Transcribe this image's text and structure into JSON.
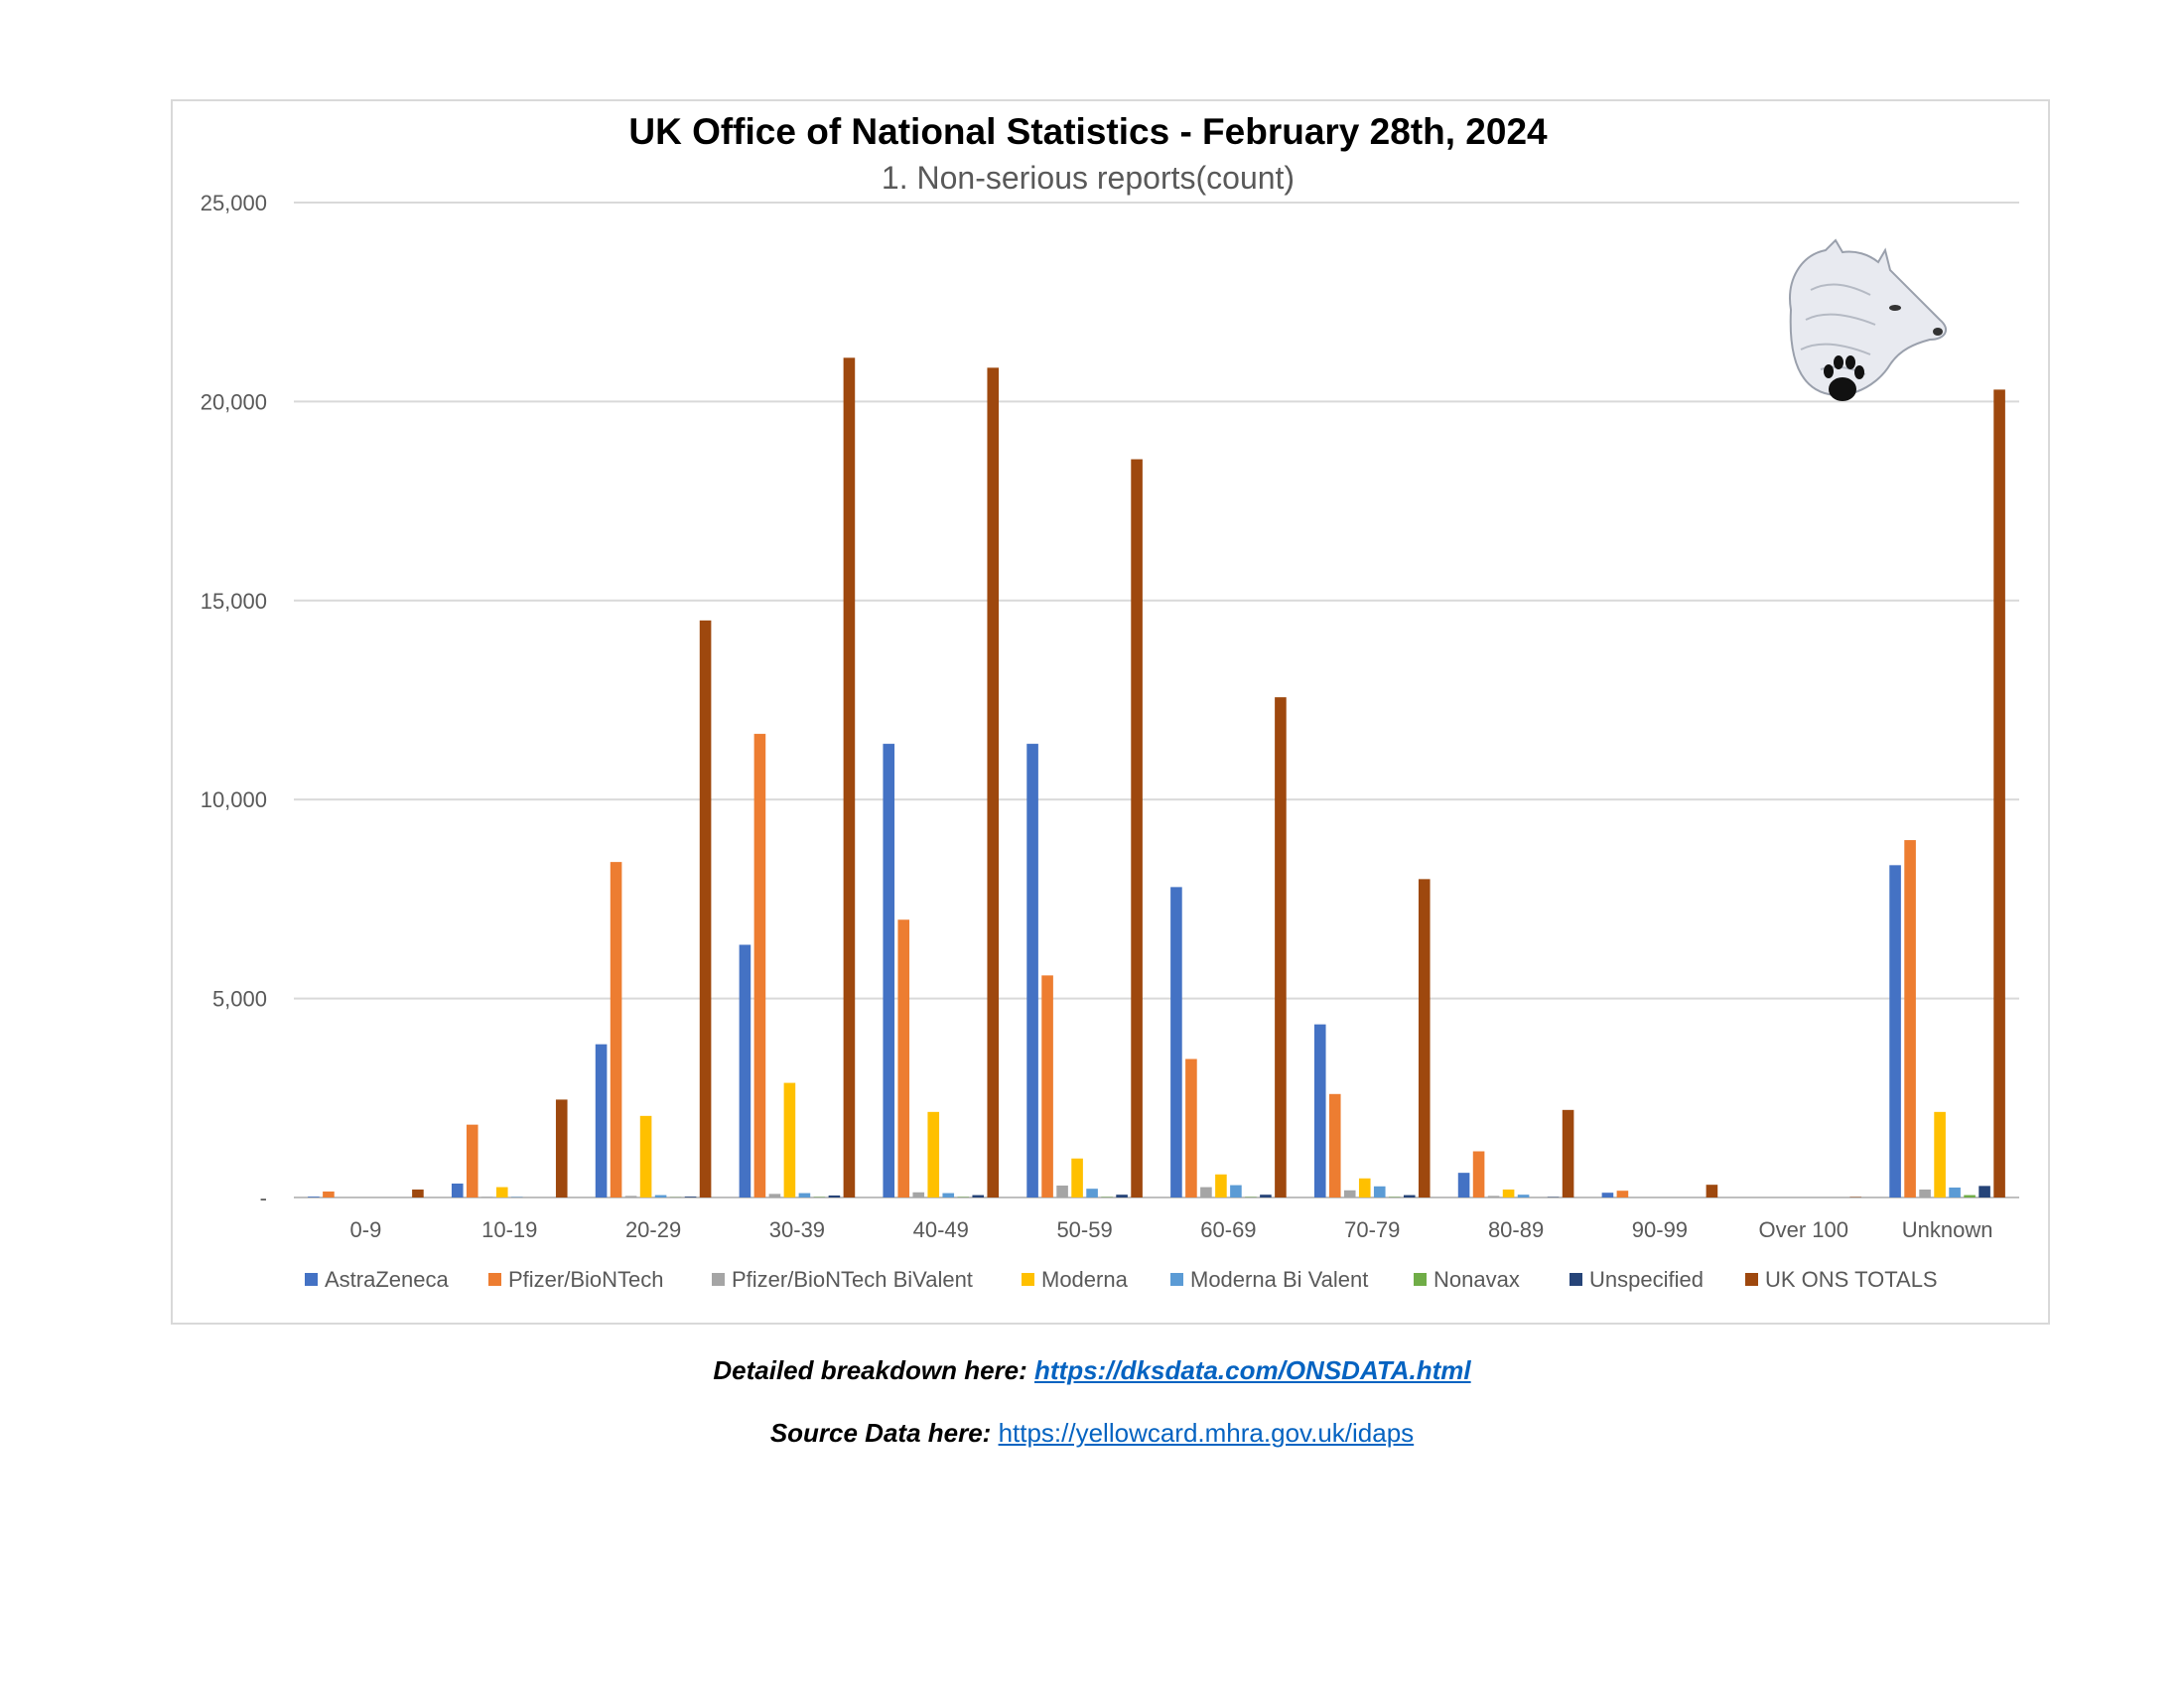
{
  "chart_data": {
    "type": "bar",
    "title": "UK Office of National Statistics - February 28th, 2024",
    "subtitle": "1. Non-serious reports(count)",
    "xlabel": "",
    "ylabel": "",
    "ylim": [
      0,
      25000
    ],
    "yticks": [
      0,
      5000,
      10000,
      15000,
      20000,
      25000
    ],
    "ytick_labels": [
      "-",
      "5,000",
      "10,000",
      "15,000",
      "20,000",
      "25,000"
    ],
    "grid": true,
    "legend_position": "bottom",
    "categories": [
      "0-9",
      "10-19",
      "20-29",
      "30-39",
      "40-49",
      "50-59",
      "60-69",
      "70-79",
      "80-89",
      "90-99",
      "Over 100",
      "Unknown"
    ],
    "series": [
      {
        "name": "AstraZeneca",
        "color": "#4472c4",
        "values": [
          20,
          350,
          3850,
          6350,
          11400,
          11400,
          7800,
          4350,
          620,
          120,
          0,
          8350
        ]
      },
      {
        "name": "Pfizer/BioNTech",
        "color": "#ed7d31",
        "values": [
          150,
          1830,
          8430,
          11650,
          6980,
          5580,
          3480,
          2600,
          1160,
          170,
          0,
          8980
        ]
      },
      {
        "name": "Pfizer/BioNTech BiValent",
        "color": "#a5a5a5",
        "values": [
          0,
          10,
          40,
          90,
          130,
          300,
          260,
          180,
          40,
          0,
          0,
          200
        ]
      },
      {
        "name": "Moderna",
        "color": "#ffc000",
        "values": [
          0,
          260,
          2050,
          2880,
          2150,
          980,
          580,
          480,
          200,
          0,
          0,
          2150
        ]
      },
      {
        "name": "Moderna Bi Valent",
        "color": "#5b9bd5",
        "values": [
          0,
          10,
          60,
          110,
          110,
          220,
          310,
          280,
          70,
          0,
          0,
          250
        ]
      },
      {
        "name": "Nonavax",
        "color": "#70ad47",
        "values": [
          0,
          0,
          5,
          10,
          10,
          10,
          10,
          10,
          0,
          0,
          0,
          60
        ]
      },
      {
        "name": "Unspecified",
        "color": "#264478",
        "values": [
          0,
          0,
          20,
          50,
          60,
          70,
          70,
          60,
          10,
          0,
          0,
          290
        ]
      },
      {
        "name": "UK ONS TOTALS",
        "color": "#9e480e",
        "values": [
          200,
          2460,
          14500,
          21100,
          20850,
          18550,
          12570,
          8000,
          2200,
          320,
          10,
          20300
        ]
      }
    ]
  },
  "footer": {
    "detail_label": "Detailed breakdown here: ",
    "detail_link": "https://dksdata.com/ONSDATA.html",
    "source_label": "Source Data here: ",
    "source_link": "https://yellowcard.mhra.gov.uk/idaps"
  },
  "logo": {
    "icon": "wolf-head-with-paw-print-icon"
  }
}
